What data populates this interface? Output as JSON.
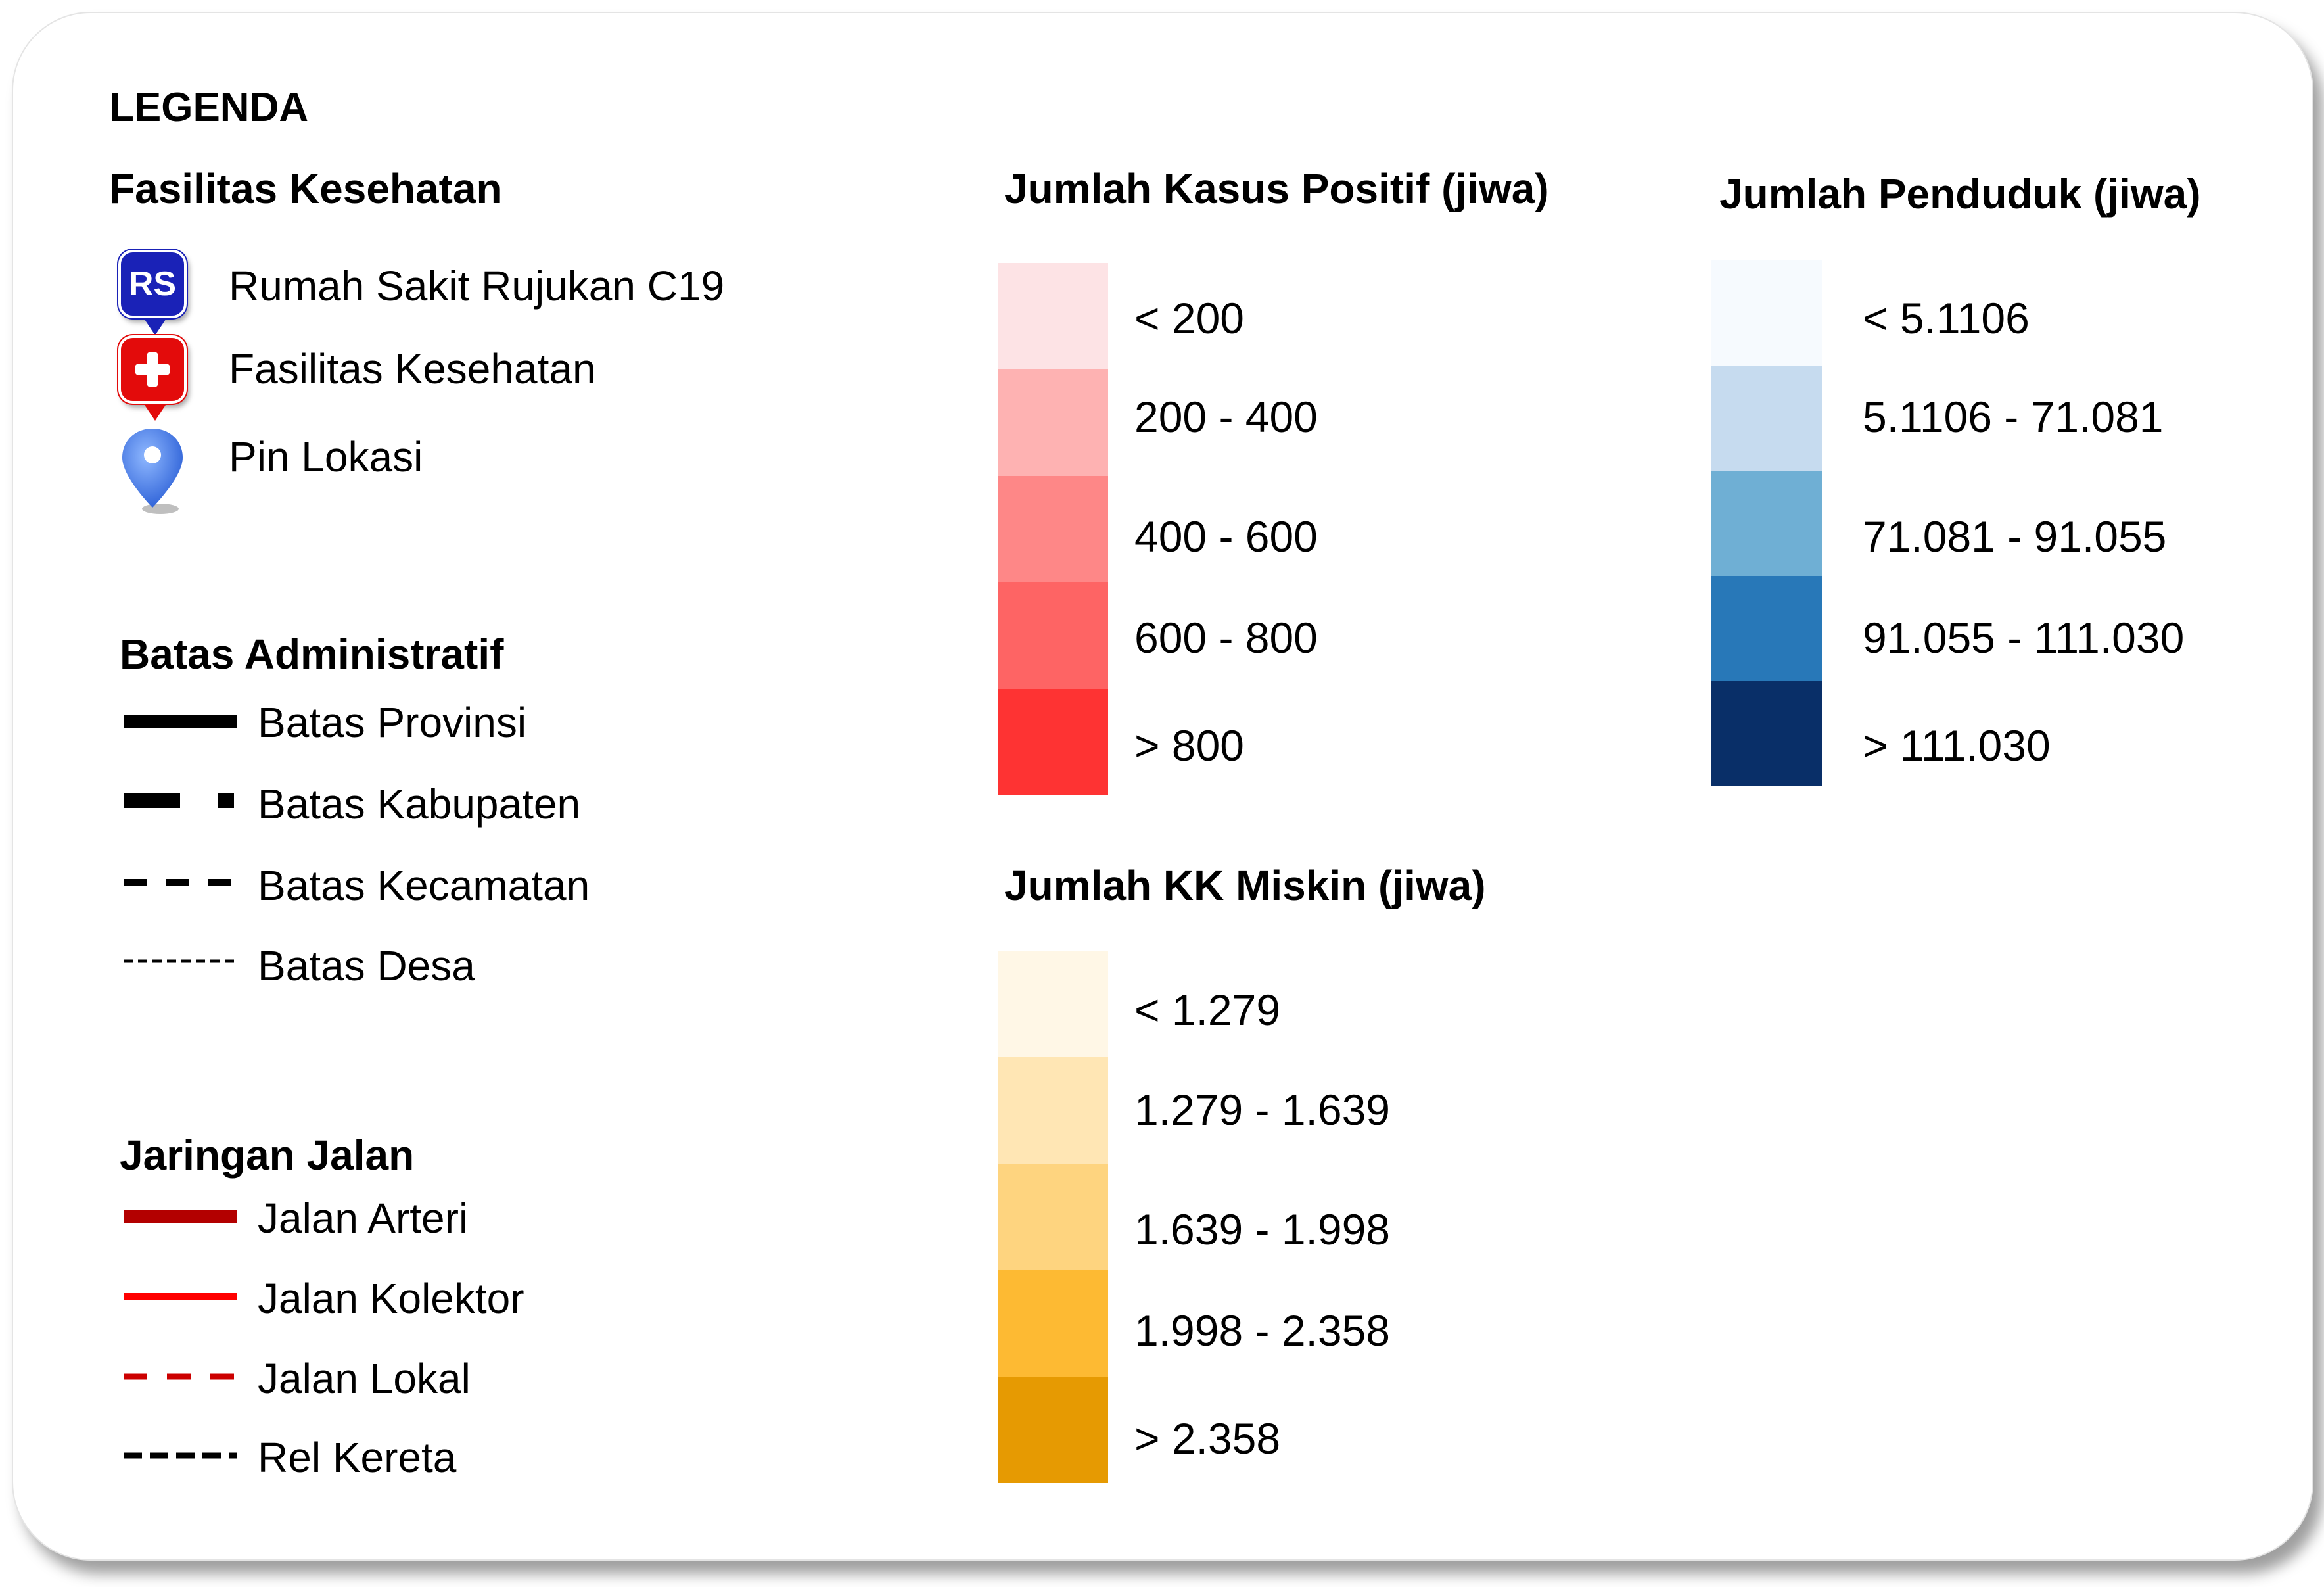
{
  "legend_title": "LEGENDA",
  "facilities": {
    "title": "Fasilitas Kesehatan",
    "rs_icon_text": "RS",
    "items": [
      {
        "label": "Rumah Sakit Rujukan C19",
        "icon": "hospital-rs-icon"
      },
      {
        "label": "Fasilitas Kesehatan",
        "icon": "health-cross-icon"
      },
      {
        "label": "Pin Lokasi",
        "icon": "location-pin-icon"
      }
    ]
  },
  "admin": {
    "title": "Batas Administratif",
    "items": [
      {
        "label": "Batas Provinsi"
      },
      {
        "label": "Batas Kabupaten"
      },
      {
        "label": "Batas Kecamatan"
      },
      {
        "label": "Batas Desa"
      }
    ]
  },
  "roads": {
    "title": "Jaringan Jalan",
    "items": [
      {
        "label": "Jalan Arteri",
        "color": "#b30000"
      },
      {
        "label": "Jalan Kolektor",
        "color": "#ff0000"
      },
      {
        "label": "Jalan Lokal",
        "color": "#cc0000"
      },
      {
        "label": "Rel Kereta",
        "color": "#000000"
      }
    ]
  },
  "cases": {
    "title": "Jumlah Kasus Positif (jiwa)",
    "classes": [
      {
        "label": "< 200",
        "color": "#fde3e5"
      },
      {
        "label": "200 - 400",
        "color": "#feb2b2"
      },
      {
        "label": "400 - 600",
        "color": "#fe8787"
      },
      {
        "label": "600 - 800",
        "color": "#fe6464"
      },
      {
        "label": "> 800",
        "color": "#fe3333"
      }
    ]
  },
  "poverty": {
    "title": "Jumlah KK Miskin (jiwa)",
    "classes": [
      {
        "label": "< 1.279",
        "color": "#fff7e6"
      },
      {
        "label": "1.279 - 1.639",
        "color": "#ffe6b4"
      },
      {
        "label": "1.639 - 1.998",
        "color": "#fed47f"
      },
      {
        "label": "1.998 - 2.358",
        "color": "#fdba33"
      },
      {
        "label": "> 2.358",
        "color": "#e69a02"
      }
    ]
  },
  "population": {
    "title": "Jumlah Penduduk (jiwa)",
    "classes": [
      {
        "label": "< 5.1106",
        "color": "#f6fafe"
      },
      {
        "label": "5.1106 - 71.081",
        "color": "#c6dbef"
      },
      {
        "label": "71.081 - 91.055",
        "color": "#6fafd4"
      },
      {
        "label": "91.055 - 111.030",
        "color": "#2878b8"
      },
      {
        "label": "> 111.030",
        "color": "#092f68"
      }
    ]
  }
}
